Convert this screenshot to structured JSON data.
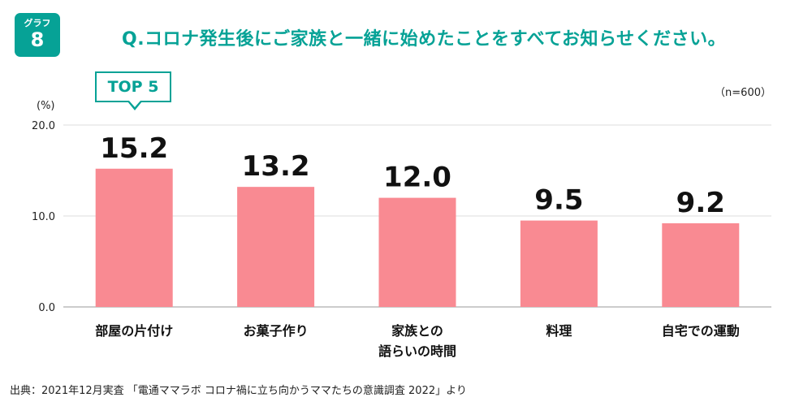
{
  "badge": {
    "label": "グラフ",
    "number": "8"
  },
  "title": "Q.コロナ発生後にご家族と一緒に始めたことをすべてお知らせください。",
  "highlight": "TOP 5",
  "sample": "（n=600）",
  "source": "出典：2021年12月実査 「電通ママラボ コロナ禍に立ち向かうママたちの意識調査 2022」より",
  "colors": {
    "accent": "#06a296",
    "bar": "#f98a92"
  },
  "chart_data": {
    "type": "bar",
    "categories": [
      "部屋の片付け",
      "お菓子作り",
      "家族との\n語らいの時間",
      "料理",
      "自宅での運動"
    ],
    "values": [
      15.2,
      13.2,
      12.0,
      9.5,
      9.2
    ],
    "value_labels": [
      "15.2",
      "13.2",
      "12.0",
      "9.5",
      "9.2"
    ],
    "ylabel": "(%)",
    "ylim": [
      0,
      20
    ],
    "yticks": [
      "0.0",
      "10.0",
      "20.0"
    ],
    "grid": true
  }
}
